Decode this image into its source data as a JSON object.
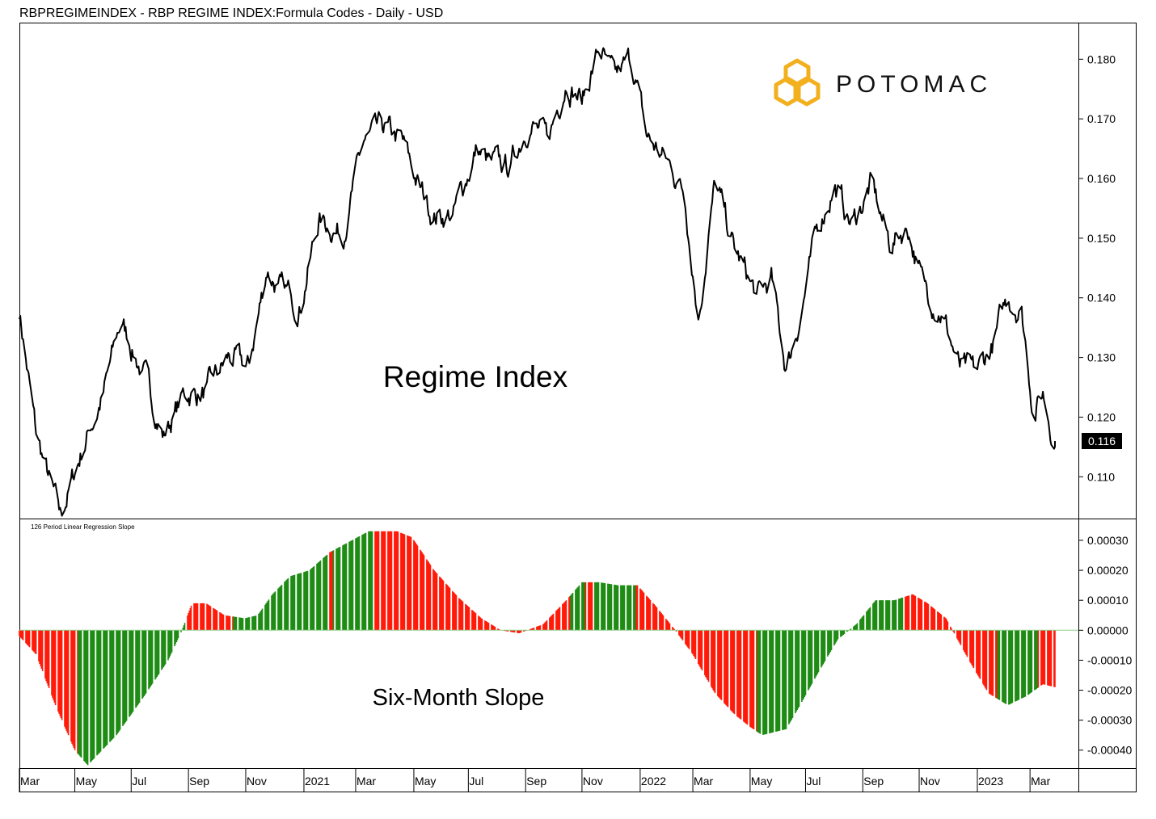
{
  "header": {
    "title": "RBPREGIMEINDEX - RBP REGIME INDEX:Formula Codes - Daily - USD"
  },
  "brand": {
    "name": "POTOMAC",
    "color": "#f2b01e"
  },
  "colors": {
    "up": "#1e8c14",
    "down": "#ff1a0a",
    "line": "#000000",
    "last_bg": "#000000"
  },
  "chart_data": [
    {
      "type": "line",
      "annotation": "Regime Index",
      "yticks": [
        "0.110",
        "0.120",
        "0.130",
        "0.140",
        "0.150",
        "0.160",
        "0.170",
        "0.180"
      ],
      "ylim": [
        0.103,
        0.186
      ],
      "last_value": "0.116",
      "x": [
        "2020-03-02",
        "2020-03-20",
        "2020-04-15",
        "2020-05-10",
        "2020-06-01",
        "2020-06-20",
        "2020-07-15",
        "2020-08-05",
        "2020-08-28",
        "2020-09-20",
        "2020-10-15",
        "2020-11-05",
        "2020-11-25",
        "2020-12-10",
        "2020-12-31",
        "2021-01-20",
        "2021-02-15",
        "2021-03-10",
        "2021-04-01",
        "2021-04-20",
        "2021-05-10",
        "2021-05-25",
        "2021-06-15",
        "2021-07-10",
        "2021-07-25",
        "2021-08-15",
        "2021-09-05",
        "2021-09-25",
        "2021-10-15",
        "2021-11-01",
        "2021-11-20",
        "2021-12-05",
        "2021-12-25",
        "2022-01-10",
        "2022-01-31",
        "2022-02-20",
        "2022-03-07",
        "2022-03-25",
        "2022-04-15",
        "2022-05-10",
        "2022-05-25",
        "2022-06-10",
        "2022-06-25",
        "2022-07-15",
        "2022-08-01",
        "2022-08-20",
        "2022-09-10",
        "2022-09-30",
        "2022-10-20",
        "2022-11-05",
        "2022-11-25",
        "2022-12-15",
        "2023-01-01",
        "2023-01-20",
        "2023-02-05",
        "2023-02-20",
        "2023-03-05",
        "2023-03-15",
        "2023-03-28"
      ],
      "values": [
        0.138,
        0.117,
        0.103,
        0.115,
        0.124,
        0.136,
        0.127,
        0.117,
        0.124,
        0.124,
        0.13,
        0.128,
        0.145,
        0.141,
        0.139,
        0.153,
        0.151,
        0.166,
        0.168,
        0.166,
        0.158,
        0.154,
        0.154,
        0.165,
        0.162,
        0.162,
        0.17,
        0.166,
        0.177,
        0.173,
        0.182,
        0.176,
        0.18,
        0.167,
        0.163,
        0.158,
        0.137,
        0.159,
        0.148,
        0.14,
        0.143,
        0.128,
        0.137,
        0.152,
        0.159,
        0.152,
        0.159,
        0.149,
        0.152,
        0.142,
        0.138,
        0.128,
        0.127,
        0.132,
        0.14,
        0.138,
        0.121,
        0.124,
        0.116
      ]
    },
    {
      "type": "bar",
      "title": "126 Period Linear Regression Slope",
      "annotation": "Six-Month Slope",
      "yticks": [
        "-0.00040",
        "-0.00030",
        "-0.00020",
        "-0.00010",
        "0.00000",
        "0.00010",
        "0.00020",
        "0.00030"
      ],
      "ylim": [
        -0.00046,
        0.00037
      ],
      "x": [
        "2020-03-02",
        "2020-03-20",
        "2020-04-10",
        "2020-05-01",
        "2020-05-15",
        "2020-06-15",
        "2020-07-15",
        "2020-08-10",
        "2020-08-25",
        "2020-09-05",
        "2020-09-20",
        "2020-10-10",
        "2020-11-01",
        "2020-11-15",
        "2020-12-01",
        "2020-12-20",
        "2021-01-10",
        "2021-02-01",
        "2021-02-25",
        "2021-03-15",
        "2021-04-15",
        "2021-05-01",
        "2021-05-25",
        "2021-06-20",
        "2021-07-15",
        "2021-08-05",
        "2021-08-25",
        "2021-09-20",
        "2021-10-15",
        "2021-11-01",
        "2021-11-20",
        "2021-12-10",
        "2021-12-31",
        "2022-01-20",
        "2022-02-10",
        "2022-03-01",
        "2022-03-25",
        "2022-04-15",
        "2022-05-01",
        "2022-05-15",
        "2022-06-10",
        "2022-06-25",
        "2022-07-15",
        "2022-08-05",
        "2022-08-25",
        "2022-09-15",
        "2022-10-05",
        "2022-10-25",
        "2022-11-10",
        "2022-11-30",
        "2022-12-25",
        "2023-01-15",
        "2023-02-05",
        "2023-02-25",
        "2023-03-15",
        "2023-03-28"
      ],
      "values": [
        -2e-05,
        -8e-05,
        -0.00025,
        -0.0004,
        -0.00045,
        -0.00035,
        -0.00022,
        -0.0001,
        0.0,
        9e-05,
        9e-05,
        5e-05,
        4e-05,
        5e-05,
        0.00012,
        0.00018,
        0.0002,
        0.00026,
        0.0003,
        0.00033,
        0.00033,
        0.00031,
        0.0002,
        0.00011,
        4e-05,
        0.0,
        -1e-05,
        2e-05,
        0.0001,
        0.00016,
        0.00016,
        0.00015,
        0.00015,
        8e-05,
        0.0,
        -8e-05,
        -0.00021,
        -0.00028,
        -0.00032,
        -0.00035,
        -0.00033,
        -0.00025,
        -0.00014,
        -3e-05,
        2e-05,
        0.0001,
        0.0001,
        0.00012,
        9e-05,
        4e-05,
        -0.0001,
        -0.00021,
        -0.00025,
        -0.00022,
        -0.00018,
        -0.00019
      ],
      "colors_by_period": [
        {
          "from": "2020-03-02",
          "to": "2020-05-05",
          "c": "down"
        },
        {
          "from": "2020-05-05",
          "to": "2020-08-31",
          "c": "up"
        },
        {
          "from": "2020-08-31",
          "to": "2020-10-20",
          "c": "down"
        },
        {
          "from": "2020-10-20",
          "to": "2021-02-01",
          "c": "up"
        },
        {
          "from": "2021-02-01",
          "to": "2021-02-05",
          "c": "down"
        },
        {
          "from": "2021-02-05",
          "to": "2021-03-20",
          "c": "up"
        },
        {
          "from": "2021-03-20",
          "to": "2021-10-20",
          "c": "down"
        },
        {
          "from": "2021-10-20",
          "to": "2021-11-05",
          "c": "up"
        },
        {
          "from": "2021-11-05",
          "to": "2021-11-15",
          "c": "down"
        },
        {
          "from": "2021-11-15",
          "to": "2021-12-30",
          "c": "up"
        },
        {
          "from": "2021-12-30",
          "to": "2022-05-10",
          "c": "down"
        },
        {
          "from": "2022-05-10",
          "to": "2022-08-20",
          "c": "up"
        },
        {
          "from": "2022-08-20",
          "to": "2022-10-15",
          "c": "up"
        },
        {
          "from": "2022-10-15",
          "to": "2023-01-25",
          "c": "down"
        },
        {
          "from": "2023-01-25",
          "to": "2023-03-10",
          "c": "up"
        },
        {
          "from": "2023-03-10",
          "to": "2023-03-28",
          "c": "down"
        }
      ]
    }
  ],
  "x_axis": {
    "ticks": [
      {
        "label": "Mar",
        "date": "2020-03-02"
      },
      {
        "label": "May",
        "date": "2020-05-01"
      },
      {
        "label": "Jul",
        "date": "2020-07-01"
      },
      {
        "label": "Sep",
        "date": "2020-09-01"
      },
      {
        "label": "Nov",
        "date": "2020-11-02"
      },
      {
        "label": "2021",
        "date": "2021-01-04"
      },
      {
        "label": "Mar",
        "date": "2021-03-01"
      },
      {
        "label": "May",
        "date": "2021-05-03"
      },
      {
        "label": "Jul",
        "date": "2021-07-01"
      },
      {
        "label": "Sep",
        "date": "2021-09-01"
      },
      {
        "label": "Nov",
        "date": "2021-11-01"
      },
      {
        "label": "2022",
        "date": "2022-01-03"
      },
      {
        "label": "Mar",
        "date": "2022-03-01"
      },
      {
        "label": "May",
        "date": "2022-05-02"
      },
      {
        "label": "Jul",
        "date": "2022-07-01"
      },
      {
        "label": "Sep",
        "date": "2022-09-01"
      },
      {
        "label": "Nov",
        "date": "2022-11-01"
      },
      {
        "label": "2023",
        "date": "2023-01-03"
      },
      {
        "label": "Mar",
        "date": "2023-03-01"
      }
    ]
  }
}
